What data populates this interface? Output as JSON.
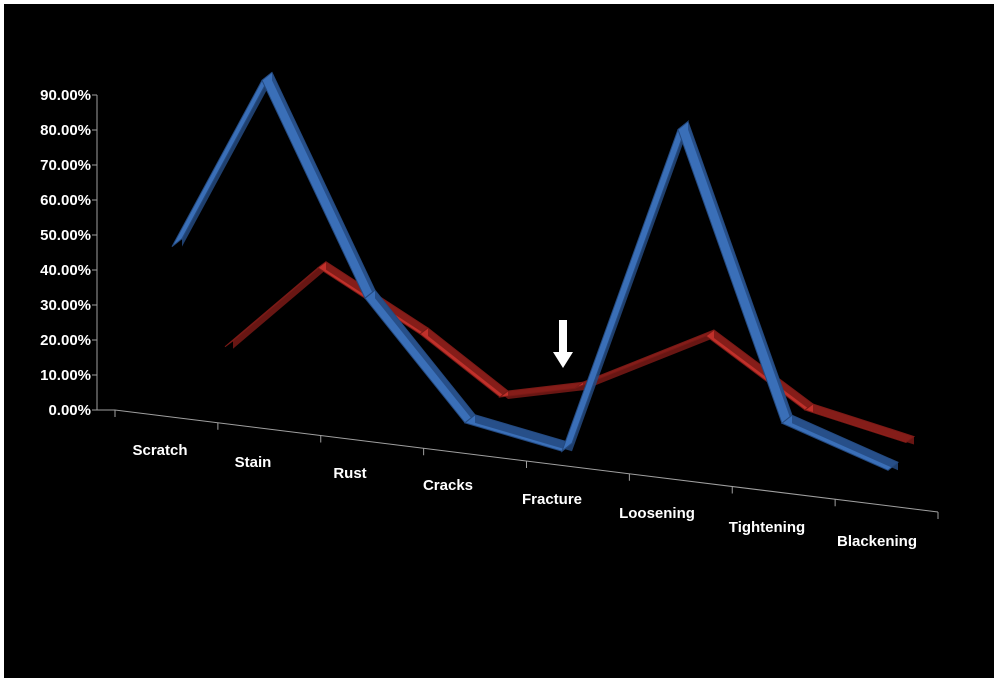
{
  "chart_data": {
    "type": "line",
    "categories": [
      "Scratch",
      "Stain",
      "Rust",
      "Cracks",
      "Fracture",
      "Loosening",
      "Tightening",
      "Blackening"
    ],
    "y_ticks": [
      "0.00%",
      "10.00%",
      "20.00%",
      "30.00%",
      "40.00%",
      "50.00%",
      "60.00%",
      "70.00%",
      "80.00%",
      "90.00%"
    ],
    "ylim": [
      0,
      90
    ],
    "series": [
      {
        "values": [
          9.5,
          35.5,
          20,
          4,
          4.5,
          22,
          8,
          1
        ],
        "color": "#c0302a"
      },
      {
        "values": [
          20.5,
          79.5,
          24,
          4.5,
          4,
          73.5,
          2.5,
          1
        ],
        "color": "#3a6fb8"
      }
    ],
    "annotation": "down-arrow",
    "annotation_category": "Fracture",
    "style": "3d-ribbon",
    "legend": "none",
    "grid": false,
    "background": "#000000"
  }
}
